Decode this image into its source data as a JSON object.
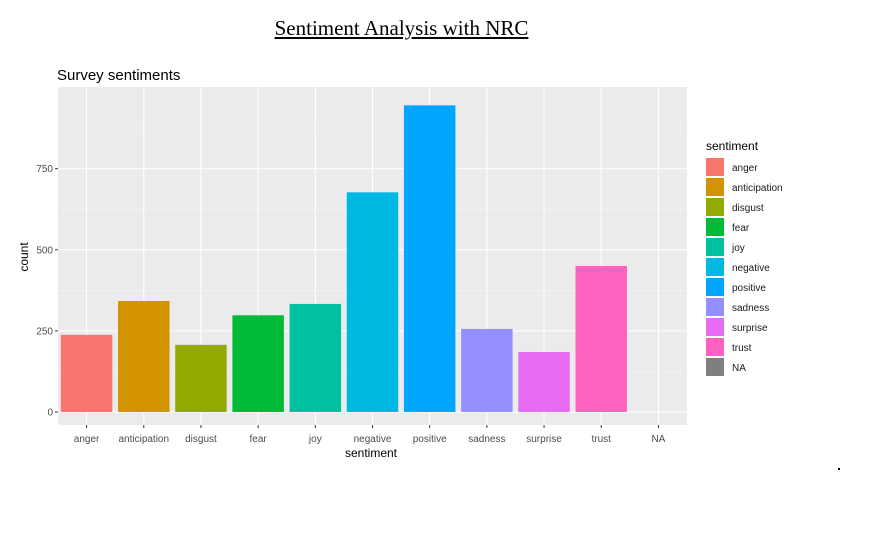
{
  "document": {
    "title": "Sentiment Analysis with NRC"
  },
  "chart_data": {
    "type": "bar",
    "title": "Survey sentiments",
    "xlabel": "sentiment",
    "ylabel": "count",
    "categories": [
      "anger",
      "anticipation",
      "disgust",
      "fear",
      "joy",
      "negative",
      "positive",
      "sadness",
      "surprise",
      "trust",
      "NA"
    ],
    "values": [
      238,
      342,
      207,
      298,
      333,
      677,
      945,
      256,
      185,
      450,
      0
    ],
    "colors": [
      "#F8766D",
      "#D39200",
      "#93AA00",
      "#00BA38",
      "#00C19F",
      "#00B9E3",
      "#00A5FF",
      "#9590FF",
      "#E76BF3",
      "#FF61C3",
      "#7F7F7F"
    ],
    "ylim": [
      0,
      980
    ],
    "yticks": [
      0,
      250,
      500,
      750
    ],
    "grid": true,
    "panel_background": "#EBEBEB",
    "legend": {
      "title": "sentiment",
      "placement": "right",
      "entries": [
        "anger",
        "anticipation",
        "disgust",
        "fear",
        "joy",
        "negative",
        "positive",
        "sadness",
        "surprise",
        "trust",
        "NA"
      ]
    }
  }
}
